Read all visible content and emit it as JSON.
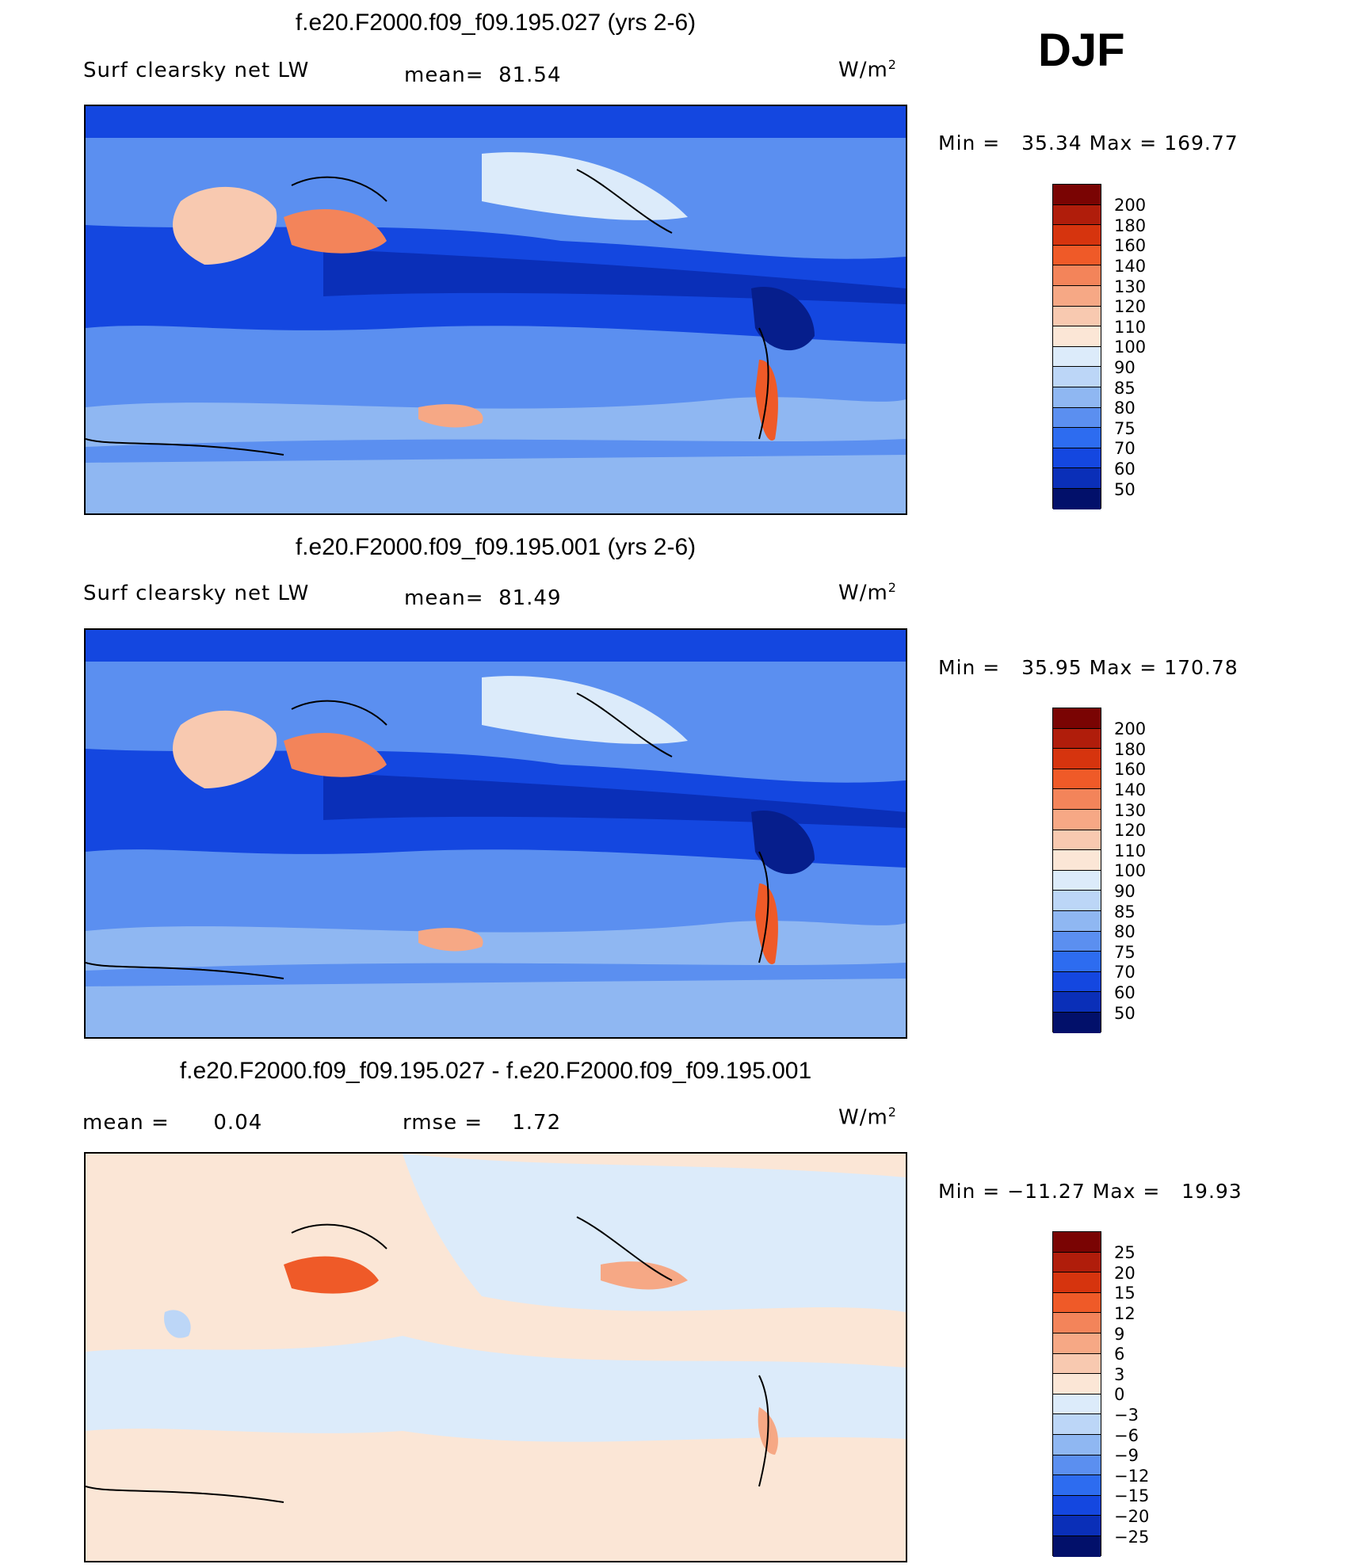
{
  "season": "DJF",
  "units_base": "W/m",
  "units_exp": "2",
  "panels": [
    {
      "title": "f.e20.F2000.f09_f09.195.027 (yrs 2-6)",
      "variable": "Surf clearsky net LW",
      "stat_label": "mean=",
      "stat_value": "81.54",
      "min_text": "Min =",
      "min_value": "35.34",
      "max_text": "Max =",
      "max_value": "169.77",
      "legend": [
        "200",
        "180",
        "160",
        "140",
        "130",
        "120",
        "110",
        "100",
        "90",
        "85",
        "80",
        "75",
        "70",
        "60",
        "50"
      ],
      "colors": [
        "#7a0403",
        "#b01d0b",
        "#d6340e",
        "#ef5a28",
        "#f3845a",
        "#f6a885",
        "#f8c9b0",
        "#fbe6d6",
        "#dcebfa",
        "#bcd6f7",
        "#8fb7f2",
        "#5b8ff0",
        "#2d6cf0",
        "#1447e0",
        "#0a2fb8",
        "#061e8c",
        "#02106a"
      ]
    },
    {
      "title": "f.e20.F2000.f09_f09.195.001 (yrs 2-6)",
      "variable": "Surf clearsky net LW",
      "stat_label": "mean=",
      "stat_value": "81.49",
      "min_text": "Min =",
      "min_value": "35.95",
      "max_text": "Max =",
      "max_value": "170.78",
      "legend": [
        "200",
        "180",
        "160",
        "140",
        "130",
        "120",
        "110",
        "100",
        "90",
        "85",
        "80",
        "75",
        "70",
        "60",
        "50"
      ],
      "colors": [
        "#7a0403",
        "#b01d0b",
        "#d6340e",
        "#ef5a28",
        "#f3845a",
        "#f6a885",
        "#f8c9b0",
        "#fbe6d6",
        "#dcebfa",
        "#bcd6f7",
        "#8fb7f2",
        "#5b8ff0",
        "#2d6cf0",
        "#1447e0",
        "#0a2fb8",
        "#061e8c",
        "#02106a"
      ]
    },
    {
      "title": "f.e20.F2000.f09_f09.195.027 - f.e20.F2000.f09_f09.195.001",
      "stat_label": "mean =",
      "stat_value": "0.04",
      "rmse_label": "rmse =",
      "rmse_value": "1.72",
      "min_text": "Min =",
      "min_value": "−11.27",
      "max_text": "Max =",
      "max_value": "19.93",
      "legend": [
        "25",
        "20",
        "15",
        "12",
        "9",
        "6",
        "3",
        "0",
        "−3",
        "−6",
        "−9",
        "−12",
        "−15",
        "−20",
        "−25"
      ],
      "colors": [
        "#7a0403",
        "#b01d0b",
        "#d6340e",
        "#ef5a28",
        "#f3845a",
        "#f6a885",
        "#f8c9b0",
        "#fbe6d6",
        "#dcebfa",
        "#bcd6f7",
        "#8fb7f2",
        "#5b8ff0",
        "#2d6cf0",
        "#1447e0",
        "#0a2fb8",
        "#061e8c",
        "#02106a"
      ]
    }
  ]
}
